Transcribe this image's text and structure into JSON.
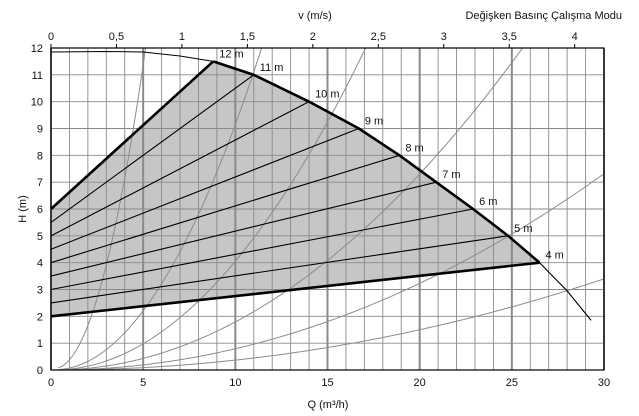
{
  "chart_data": {
    "type": "line",
    "title": "Değişken Basınç Çalışma Modu",
    "xlabel": "Q (m³/h)",
    "ylabel": "H (m)",
    "x2label": "v (m/s)",
    "xlim": [
      0,
      30
    ],
    "ylim": [
      0,
      12
    ],
    "x2lim": [
      0,
      4.2
    ],
    "x_ticks": [
      "0",
      "5",
      "10",
      "15",
      "20",
      "25",
      "30"
    ],
    "y_ticks": [
      "0",
      "1",
      "2",
      "3",
      "4",
      "5",
      "6",
      "7",
      "8",
      "9",
      "10",
      "11",
      "12"
    ],
    "x2_ticks": [
      "0",
      "0,5",
      "1",
      "1,5",
      "2",
      "2,5",
      "3",
      "3,5",
      "4"
    ],
    "v_per_q": 0.1408,
    "grid": true,
    "max_curve": {
      "name": "max",
      "points": [
        [
          0,
          11.85
        ],
        [
          3,
          11.87
        ],
        [
          5,
          11.85
        ],
        [
          7,
          11.7
        ],
        [
          8.8,
          11.5
        ],
        [
          11,
          11
        ],
        [
          14,
          10
        ],
        [
          16.7,
          9
        ],
        [
          18.9,
          8
        ],
        [
          20.9,
          7
        ],
        [
          22.9,
          6
        ],
        [
          24.8,
          5
        ],
        [
          26.5,
          4
        ],
        [
          28,
          2.95
        ],
        [
          29.3,
          1.85
        ]
      ]
    },
    "setpoint_lines": [
      {
        "label": "12 m",
        "h0": 6,
        "end": [
          8.8,
          11.5
        ]
      },
      {
        "label": "11 m",
        "h0": 5.5,
        "end": [
          11,
          11
        ]
      },
      {
        "label": "10 m",
        "h0": 5,
        "end": [
          14,
          10
        ]
      },
      {
        "label": "9 m",
        "h0": 4.5,
        "end": [
          16.7,
          9
        ]
      },
      {
        "label": "8 m",
        "h0": 4,
        "end": [
          18.9,
          8
        ]
      },
      {
        "label": "7 m",
        "h0": 3.5,
        "end": [
          20.9,
          7
        ]
      },
      {
        "label": "6 m",
        "h0": 3,
        "end": [
          22.9,
          6
        ]
      },
      {
        "label": "5 m",
        "h0": 2.5,
        "end": [
          24.8,
          5
        ]
      },
      {
        "label": "4 m",
        "h0": 2,
        "end": [
          26.5,
          4
        ]
      }
    ],
    "system_curves_k": [
      0.5,
      0.097,
      0.043,
      0.019,
      0.0084,
      0.0039
    ],
    "colors": {
      "fill": "#c6c6c6",
      "grid": "#8a8a8a",
      "system": "#8c8c8c",
      "line": "#000000"
    }
  }
}
